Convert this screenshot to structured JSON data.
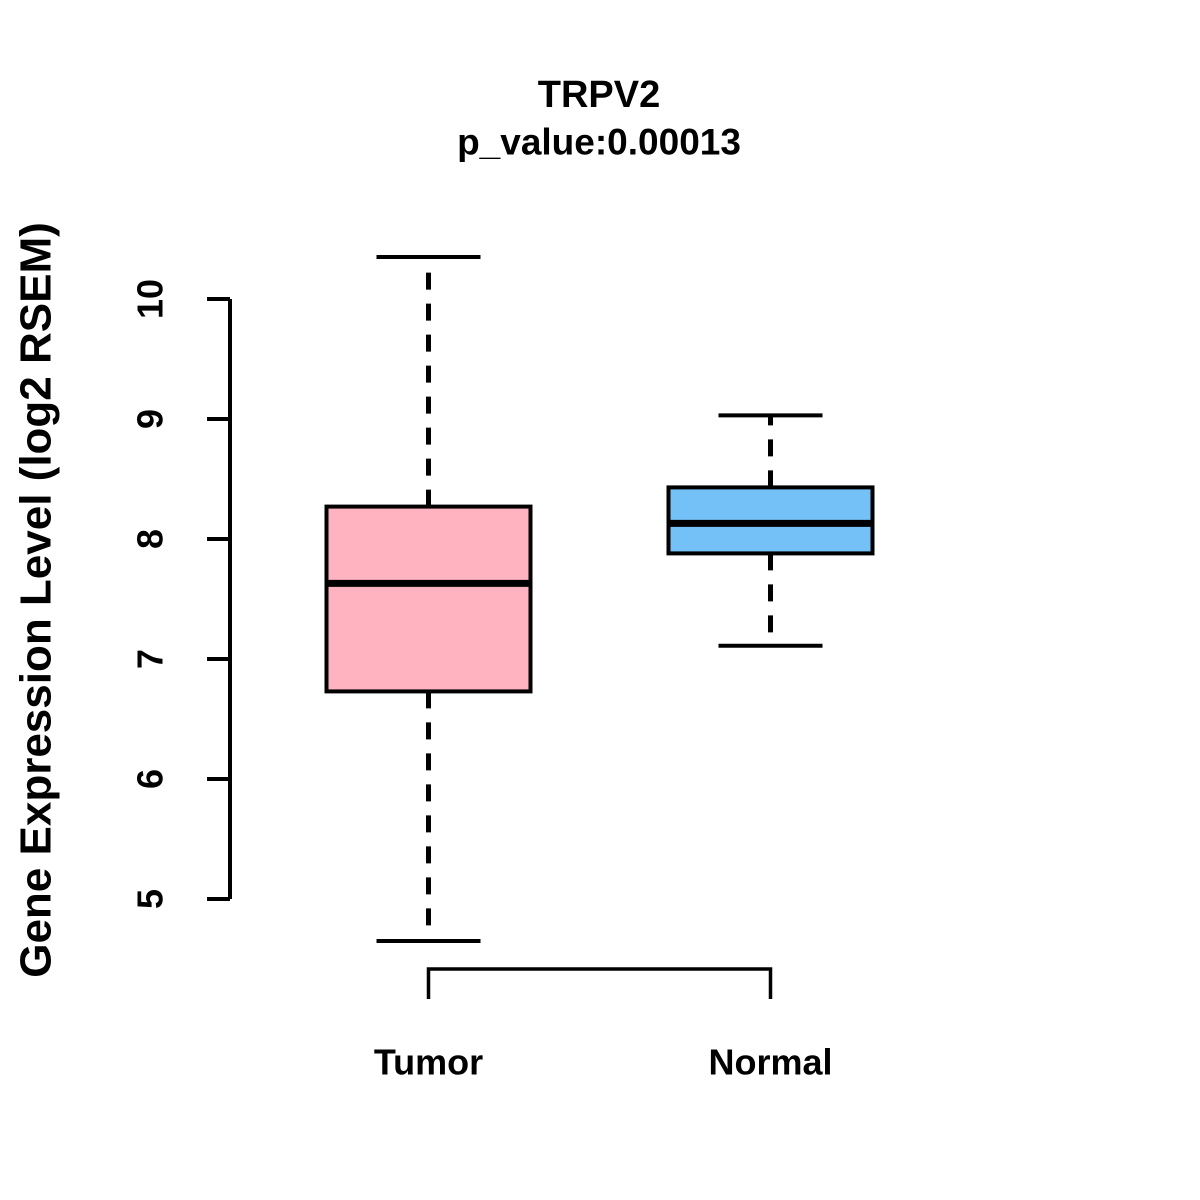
{
  "figure": {
    "background": "#FFFFFF",
    "stroke_color": "#000000"
  },
  "chart_data": {
    "type": "boxplot",
    "title": "TRPV2",
    "subtitle": "p_value:0.00013",
    "ylabel": "Gene Expression Level (log2 RSEM)",
    "xlabel": "",
    "axis_range": [
      5,
      10
    ],
    "yticks": [
      5,
      6,
      7,
      8,
      9,
      10
    ],
    "grid": false,
    "legend": "none",
    "categories": [
      "Tumor",
      "Normal"
    ],
    "series": [
      {
        "name": "Tumor",
        "lower_whisker": 4.65,
        "q1": 6.73,
        "median": 7.63,
        "q3": 8.27,
        "upper_whisker": 10.35,
        "fill": "#FFB3C1"
      },
      {
        "name": "Normal",
        "lower_whisker": 7.11,
        "q1": 7.88,
        "median": 8.13,
        "q3": 8.43,
        "upper_whisker": 9.03,
        "fill": "#74C1F7"
      }
    ]
  }
}
